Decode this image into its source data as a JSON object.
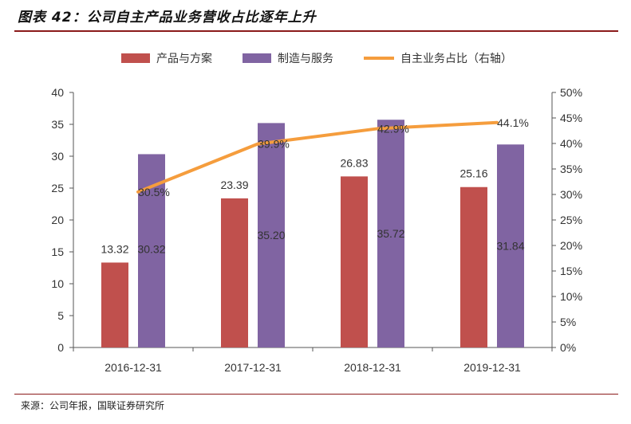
{
  "figure": {
    "title": "图表 42：公司自主产品业务营收占比逐年上升",
    "source": "来源：公司年报，国联证券研究所"
  },
  "colors": {
    "bar1": "#c0504d",
    "bar2": "#8064a2",
    "line": "#f59d3d",
    "accent_rule": "#8b1a1a"
  },
  "chart_data": {
    "type": "bar",
    "categories": [
      "2016-12-31",
      "2017-12-31",
      "2018-12-31",
      "2019-12-31"
    ],
    "series": [
      {
        "name": "产品与方案",
        "type": "bar",
        "axis": "left",
        "values": [
          13.32,
          23.39,
          26.83,
          25.16
        ],
        "labels": [
          "13.32",
          "23.39",
          "26.83",
          "25.16"
        ]
      },
      {
        "name": "制造与服务",
        "type": "bar",
        "axis": "left",
        "values": [
          30.32,
          35.2,
          35.72,
          31.84
        ],
        "labels": [
          "30.32",
          "35.20",
          "35.72",
          "31.84"
        ]
      },
      {
        "name": "自主业务占比（右轴）",
        "type": "line",
        "axis": "right",
        "values": [
          30.5,
          39.9,
          42.9,
          44.1
        ],
        "labels": [
          "30.5%",
          "39.9%",
          "42.9%",
          "44.1%"
        ]
      }
    ],
    "y_left": {
      "min": 0,
      "max": 40,
      "ticks": [
        "0",
        "5",
        "10",
        "15",
        "20",
        "25",
        "30",
        "35",
        "40"
      ]
    },
    "y_right": {
      "min": 0,
      "max": 50,
      "ticks": [
        "0%",
        "5%",
        "10%",
        "15%",
        "20%",
        "25%",
        "30%",
        "35%",
        "40%",
        "45%",
        "50%"
      ]
    },
    "legend_position": "top",
    "grid": false
  }
}
